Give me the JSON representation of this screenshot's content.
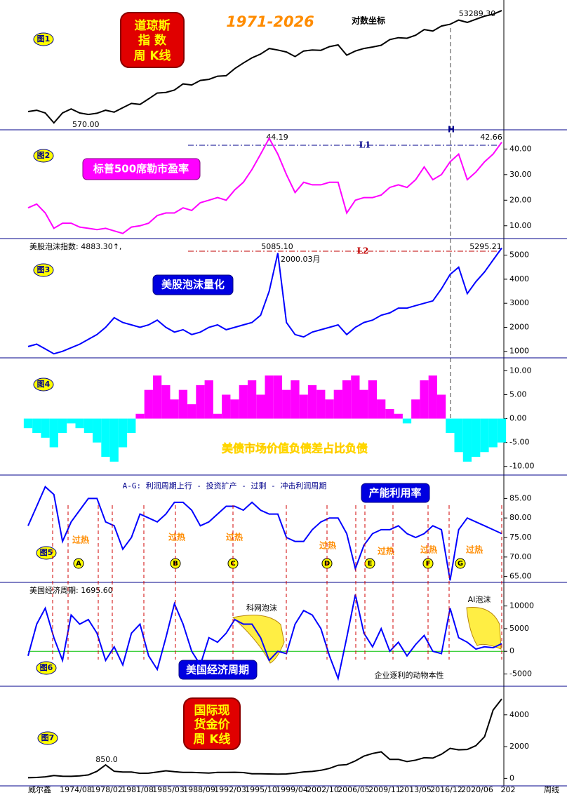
{
  "chart_data": [
    {
      "type": "line",
      "panel_label": "图1",
      "title": [
        "道琼斯",
        "指 数",
        "周 K线"
      ],
      "subtitle": "1971-2026",
      "annotations": [
        "对数坐标",
        "53289.30",
        "570.00"
      ],
      "log": true,
      "color": "#000000",
      "ylim": [
        430,
        81700
      ],
      "values": [
        900,
        950,
        850,
        570,
        850,
        1000,
        850,
        800,
        840,
        950,
        880,
        1050,
        1250,
        1200,
        1500,
        1900,
        1950,
        2150,
        2750,
        2630,
        3170,
        3300,
        3750,
        3830,
        5100,
        6400,
        7900,
        9200,
        11500,
        10800,
        10000,
        8300,
        10400,
        10800,
        10700,
        12400,
        13300,
        8800,
        10400,
        11500,
        12200,
        13100,
        16500,
        17800,
        17400,
        19700,
        24700,
        23300,
        28500,
        30600,
        36300,
        33100,
        37600,
        42500,
        46000,
        53289.3
      ]
    },
    {
      "type": "line",
      "panel_label": "图2",
      "title": "标普500席勒市盈率",
      "annotations": [
        "44.19",
        "42.66",
        "L1",
        "H"
      ],
      "color": "#ff00ff",
      "ylim": [
        5,
        47.5
      ],
      "yticks": [
        {
          "value": 10,
          "label": "10.00"
        },
        {
          "value": 20,
          "label": "20.00"
        },
        {
          "value": 30,
          "label": "30.00"
        },
        {
          "value": 40,
          "label": "40.00"
        }
      ],
      "values": [
        17,
        18.5,
        15,
        9,
        11,
        11,
        9.5,
        9,
        8.5,
        9,
        8,
        7,
        9.5,
        10,
        11,
        14,
        15,
        15,
        17,
        16,
        19,
        20,
        21,
        20,
        24,
        27,
        32,
        38,
        44.19,
        38,
        30,
        23,
        27,
        26,
        26,
        27,
        27,
        15,
        20,
        21,
        21,
        22,
        25,
        26,
        25,
        28,
        33,
        28,
        30,
        35,
        38,
        28,
        31,
        35,
        38,
        42.66
      ]
    },
    {
      "type": "line",
      "panel_label": "图3",
      "title": "美股泡沫量化",
      "subtitle": "美股泡沫指数: 4883.30↑,",
      "annotations": [
        "5085.10",
        "2000.03月",
        "5295.21",
        "L2"
      ],
      "color": "#0000ff",
      "ylim": [
        730,
        5690
      ],
      "yticks": [
        1000,
        2000,
        3000,
        4000,
        5000
      ],
      "values": [
        1200,
        1300,
        1100,
        900,
        1000,
        1150,
        1300,
        1500,
        1700,
        2000,
        2400,
        2200,
        2100,
        2000,
        2100,
        2300,
        2000,
        1800,
        1900,
        1700,
        1800,
        2000,
        2100,
        1900,
        2000,
        2100,
        2200,
        2500,
        3500,
        5085.1,
        2200,
        1700,
        1600,
        1800,
        1900,
        2000,
        2100,
        1700,
        2000,
        2200,
        2300,
        2500,
        2600,
        2800,
        2800,
        2900,
        3000,
        3100,
        3600,
        4200,
        4500,
        3400,
        3900,
        4300,
        4800,
        5295.21
      ]
    },
    {
      "type": "bar",
      "panel_label": "图4",
      "title": "美债市场价值负债差占比负债",
      "colors": {
        "positive": "#ff00ff",
        "negative": "#00ffff"
      },
      "ylim": [
        -11.8,
        12.7
      ],
      "yticks": [
        {
          "value": -10,
          "label": "-10.00"
        },
        {
          "value": -5,
          "label": "-5.00"
        },
        {
          "value": 0,
          "label": "0.00"
        },
        {
          "value": 5,
          "label": "5.00"
        },
        {
          "value": 10,
          "label": "10.00"
        }
      ],
      "values": [
        -2,
        -3,
        -4,
        -6,
        -3,
        -1,
        -2,
        -3,
        -5,
        -8,
        -9,
        -6,
        -3,
        1,
        6,
        9,
        7,
        4,
        6,
        3,
        7,
        8,
        1,
        5,
        4,
        7,
        8,
        5,
        9,
        9,
        6,
        8,
        5,
        7,
        6,
        4,
        6,
        8,
        9,
        6,
        8,
        4,
        2,
        1,
        -1,
        4,
        8,
        9,
        5,
        -3,
        -7,
        -9,
        -8,
        -7,
        -6,
        -5
      ]
    },
    {
      "type": "line",
      "panel_label": "图5",
      "title": "产能利用率",
      "subtitle": "A-G: 利润周期上行 - 投资扩产 - 过剩 - 冲击利润周期",
      "markers": [
        "A",
        "B",
        "C",
        "D",
        "E",
        "F",
        "G"
      ],
      "hot_labels": [
        "过热",
        "过热",
        "过热",
        "过热",
        "过热",
        "过热",
        "过热"
      ],
      "color": "#0000ff",
      "ylim": [
        63.5,
        91
      ],
      "yticks": [
        {
          "value": 65,
          "label": "65.00"
        },
        {
          "value": 70,
          "label": "70.00"
        },
        {
          "value": 75,
          "label": "75.00"
        },
        {
          "value": 80,
          "label": "80.00"
        },
        {
          "value": 85,
          "label": "85.00"
        }
      ],
      "values": [
        78,
        83,
        88,
        86,
        74,
        79,
        82,
        85,
        85,
        79,
        78,
        72,
        75,
        81,
        80,
        79,
        81,
        84,
        84,
        82,
        78,
        79,
        81,
        83,
        83,
        82,
        84,
        82,
        81,
        81,
        75,
        74,
        74,
        77,
        79,
        80,
        80,
        76,
        67,
        73,
        76,
        77,
        77,
        78,
        76,
        75,
        76,
        78,
        77,
        64,
        77,
        80,
        79,
        78,
        77,
        76
      ]
    },
    {
      "type": "line",
      "panel_label": "图6",
      "title": "美国经济周期",
      "subtitle": "美国经济周期: 1695.60",
      "annotations": [
        "科网泡沫",
        "AI泡沫",
        "企业逐利的动物本性"
      ],
      "color": "#0000ff",
      "zero_line_color": "#00c000",
      "ylim": [
        -7700,
        15200
      ],
      "yticks": [
        -5000,
        0,
        5000,
        10000
      ],
      "values": [
        -1000,
        6000,
        9500,
        3000,
        -2000,
        8000,
        6000,
        7000,
        4000,
        -2000,
        1000,
        -3000,
        4000,
        6000,
        -1000,
        -4000,
        3000,
        10500,
        6000,
        0,
        -3000,
        3000,
        2000,
        4000,
        7000,
        6000,
        6000,
        3000,
        -2000,
        0,
        -500,
        6000,
        9000,
        8000,
        5000,
        -1000,
        -6000,
        3000,
        12500,
        4000,
        1000,
        5000,
        0,
        2000,
        -1000,
        1500,
        3500,
        0,
        -500,
        9500,
        3000,
        2000,
        500,
        1000,
        800,
        1695.6
      ]
    },
    {
      "type": "line",
      "panel_label": "图7",
      "title": [
        "国际现",
        "货金价",
        "周 K线"
      ],
      "annotations": [
        "850.0"
      ],
      "color": "#000000",
      "ylim": [
        -470,
        5800
      ],
      "yticks": [
        0,
        2000,
        4000
      ],
      "values": [
        40,
        60,
        100,
        180,
        140,
        130,
        160,
        220,
        450,
        850,
        450,
        400,
        400,
        320,
        330,
        400,
        480,
        420,
        380,
        380,
        360,
        340,
        380,
        380,
        385,
        370,
        290,
        290,
        280,
        270,
        280,
        340,
        410,
        440,
        510,
        630,
        830,
        870,
        1100,
        1400,
        1570,
        1670,
        1200,
        1200,
        1060,
        1150,
        1300,
        1280,
        1520,
        1890,
        1800,
        1820,
        2060,
        2620,
        4300,
        5000
      ]
    }
  ],
  "x_axis": {
    "source": "威尔鑫",
    "labels": [
      "1974/08",
      "1978/02",
      "1981/08",
      "1985/03",
      "1988/09",
      "1992/03",
      "1995/10",
      "1999/04",
      "2002/10",
      "2006/05",
      "2009/11",
      "2013/05",
      "2016/12",
      "2020/06",
      "202"
    ],
    "period": "周线"
  }
}
